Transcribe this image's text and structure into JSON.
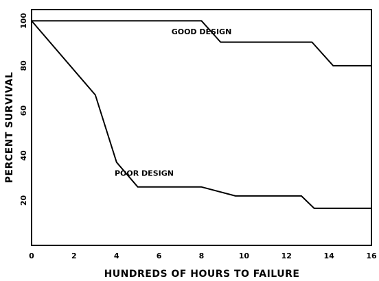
{
  "chart_data": {
    "type": "line",
    "xlabel": "HUNDREDS OF HOURS TO FAILURE",
    "ylabel": "PERCENT SURVIVAL",
    "xlim": [
      0,
      16
    ],
    "ylim": [
      0,
      105
    ],
    "x_ticks": [
      "0",
      "2",
      "4",
      "6",
      "8",
      "10",
      "12",
      "14",
      "16"
    ],
    "y_ticks": [
      "20",
      "40",
      "60",
      "80",
      "100"
    ],
    "grid": false,
    "series": [
      {
        "name": "GOOD DESIGN",
        "points": [
          [
            0,
            100
          ],
          [
            8,
            100
          ],
          [
            8.9,
            90.5
          ],
          [
            13.2,
            90.5
          ],
          [
            14.2,
            80
          ],
          [
            16,
            80
          ]
        ],
        "label_at": [
          8,
          94
        ]
      },
      {
        "name": "POOR DESIGN",
        "points": [
          [
            0,
            100
          ],
          [
            3,
            67
          ],
          [
            4,
            37
          ],
          [
            5,
            26
          ],
          [
            8,
            26
          ],
          [
            9.6,
            22
          ],
          [
            12.7,
            22
          ],
          [
            13.3,
            16.5
          ],
          [
            16,
            16.5
          ]
        ],
        "label_at": [
          5.3,
          31
        ]
      }
    ]
  }
}
